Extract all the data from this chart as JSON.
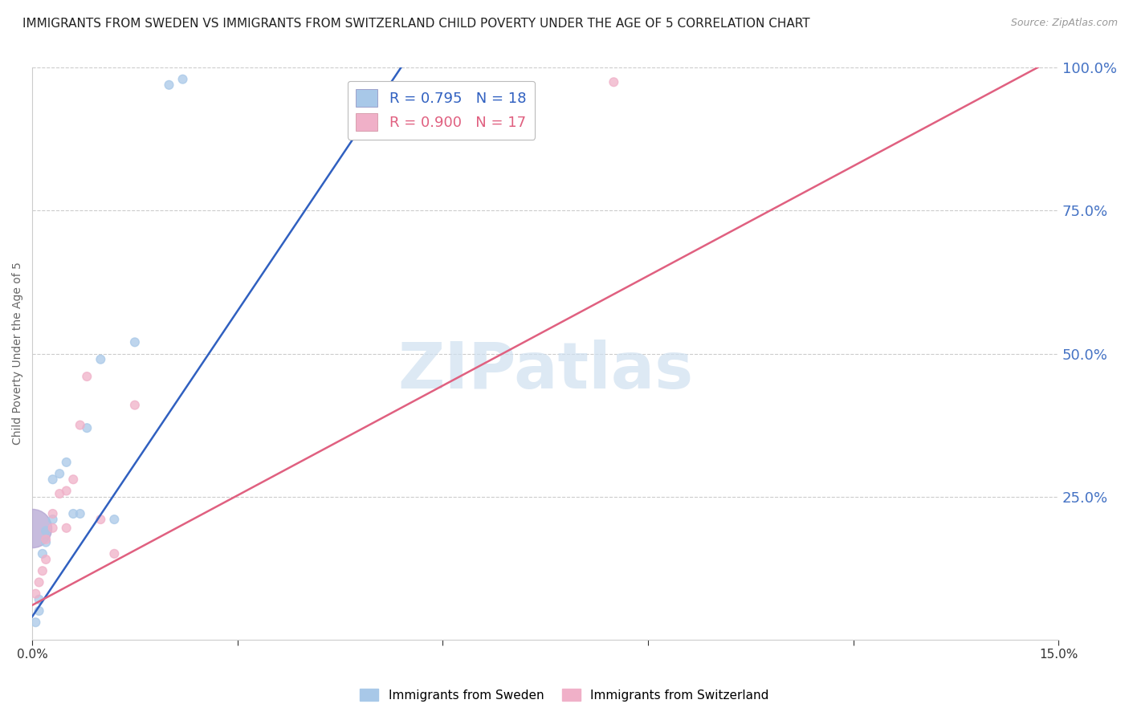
{
  "title": "IMMIGRANTS FROM SWEDEN VS IMMIGRANTS FROM SWITZERLAND CHILD POVERTY UNDER THE AGE OF 5 CORRELATION CHART",
  "source": "Source: ZipAtlas.com",
  "ylabel": "Child Poverty Under the Age of 5",
  "xlim": [
    0.0,
    0.15
  ],
  "ylim": [
    0.0,
    1.0
  ],
  "sweden_R": 0.795,
  "sweden_N": 18,
  "switzerland_R": 0.9,
  "switzerland_N": 17,
  "sweden_color": "#a8c8e8",
  "switzerland_color": "#f0b0c8",
  "sweden_line_color": "#3060c0",
  "switzerland_line_color": "#e06080",
  "watermark_color": "#cfe0f0",
  "background_color": "#ffffff",
  "grid_color": "#cccccc",
  "right_axis_color": "#4472c4",
  "sweden_x": [
    0.0005,
    0.001,
    0.001,
    0.0015,
    0.002,
    0.002,
    0.003,
    0.003,
    0.004,
    0.005,
    0.006,
    0.007,
    0.008,
    0.01,
    0.012,
    0.015,
    0.02,
    0.022
  ],
  "sweden_y": [
    0.03,
    0.05,
    0.07,
    0.15,
    0.17,
    0.19,
    0.21,
    0.28,
    0.29,
    0.31,
    0.22,
    0.22,
    0.37,
    0.49,
    0.21,
    0.52,
    0.97,
    0.98
  ],
  "sweden_sizes": [
    60,
    60,
    60,
    60,
    60,
    60,
    60,
    60,
    60,
    60,
    60,
    60,
    60,
    60,
    60,
    60,
    60,
    60
  ],
  "sweden_large_x": [
    0.0
  ],
  "sweden_large_y": [
    0.195
  ],
  "sweden_large_size": [
    1200
  ],
  "switzerland_x": [
    0.0005,
    0.001,
    0.0015,
    0.002,
    0.002,
    0.003,
    0.003,
    0.004,
    0.005,
    0.005,
    0.006,
    0.007,
    0.008,
    0.01,
    0.012,
    0.015,
    0.085
  ],
  "switzerland_y": [
    0.08,
    0.1,
    0.12,
    0.14,
    0.175,
    0.195,
    0.22,
    0.255,
    0.195,
    0.26,
    0.28,
    0.375,
    0.46,
    0.21,
    0.15,
    0.41,
    0.975
  ],
  "switzerland_sizes": [
    60,
    60,
    60,
    60,
    60,
    60,
    60,
    60,
    60,
    60,
    60,
    60,
    60,
    60,
    60,
    60,
    60
  ],
  "sweden_line_x0": 0.0,
  "sweden_line_y0": 0.04,
  "sweden_line_x1": 0.055,
  "sweden_line_y1": 1.02,
  "switzerland_line_x0": 0.0,
  "switzerland_line_y0": 0.06,
  "switzerland_line_x1": 0.15,
  "switzerland_line_y1": 1.02,
  "title_fontsize": 11,
  "axis_label_fontsize": 10,
  "tick_fontsize": 11
}
